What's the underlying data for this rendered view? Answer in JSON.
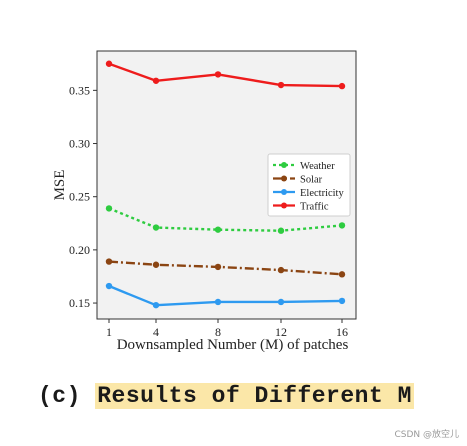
{
  "chart_data": {
    "type": "line",
    "xlabel": "Downsampled Number (M) of patches",
    "ylabel": "MSE",
    "categories": [
      "1",
      "4",
      "8",
      "12",
      "16"
    ],
    "ylim": [
      0.135,
      0.387
    ],
    "yticks": [
      "0.15",
      "0.20",
      "0.25",
      "0.30",
      "0.35"
    ],
    "grid": false,
    "legend_position": "right",
    "series": [
      {
        "name": "Weather",
        "values": [
          0.239,
          0.221,
          0.219,
          0.218,
          0.223
        ],
        "color": "#2ecc40",
        "style": "dotted",
        "marker": "circle"
      },
      {
        "name": "Solar",
        "values": [
          0.189,
          0.186,
          0.184,
          0.181,
          0.177
        ],
        "color": "#8b4513",
        "style": "dashdot",
        "marker": "circle"
      },
      {
        "name": "Electricity",
        "values": [
          0.166,
          0.148,
          0.151,
          0.151,
          0.152
        ],
        "color": "#2e9af0",
        "style": "solid",
        "marker": "circle"
      },
      {
        "name": "Traffic",
        "values": [
          0.375,
          0.359,
          0.365,
          0.355,
          0.354
        ],
        "color": "#ee1c1c",
        "style": "solid",
        "marker": "circle"
      }
    ]
  },
  "caption": {
    "prefix": "(c) ",
    "highlight": "Results of Different M"
  },
  "watermark": "CSDN @放空儿"
}
